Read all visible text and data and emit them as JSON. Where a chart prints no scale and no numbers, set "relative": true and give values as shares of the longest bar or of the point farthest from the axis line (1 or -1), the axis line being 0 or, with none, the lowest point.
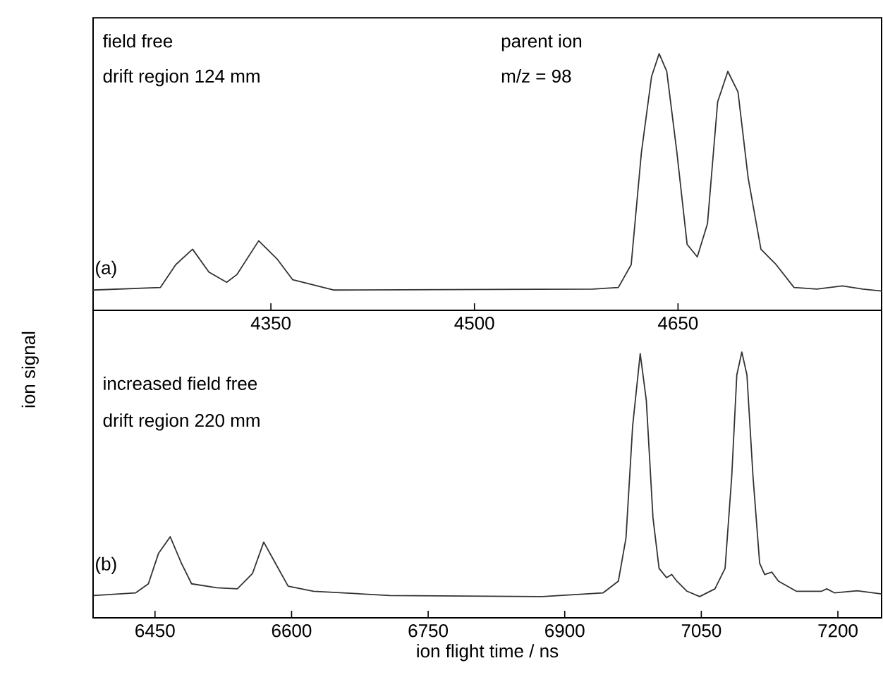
{
  "chart_data": [
    {
      "type": "line",
      "relative": true,
      "tick_labels": "x",
      "xlim": [
        4219,
        4800
      ],
      "xticks": [
        4350,
        4500,
        4650
      ],
      "annotations": [
        "field free",
        "drift region 124 mm",
        "parent ion",
        "m/z = 98",
        "(a)"
      ],
      "series": [
        {
          "color": "#333333",
          "x": [
            4219,
            4268.6,
            4279.9,
            4292.3,
            4304.3,
            4317.4,
            4324.9,
            4341,
            4354.9,
            4366.1,
            4396.1,
            4587.3,
            4606,
            4615.5,
            4623,
            4630.5,
            4636.1,
            4641.7,
            4649.2,
            4656.7,
            4664.2,
            4671.7,
            4679.2,
            4686.7,
            4694.2,
            4701.7,
            4711.1,
            4722.3,
            4735.5,
            4752.3,
            4771.1,
            4786.1,
            4800
          ],
          "values": [
            0.079,
            0.089,
            0.178,
            0.238,
            0.149,
            0.109,
            0.139,
            0.271,
            0.198,
            0.119,
            0.079,
            0.083,
            0.089,
            0.178,
            0.614,
            0.911,
            1,
            0.931,
            0.614,
            0.257,
            0.208,
            0.337,
            0.812,
            0.931,
            0.851,
            0.515,
            0.238,
            0.178,
            0.089,
            0.083,
            0.095,
            0.083,
            0.075
          ]
        }
      ]
    },
    {
      "type": "line",
      "relative": true,
      "tick_labels": "x",
      "ylabel": "ion signal",
      "xlabel": "ion flight time / ns",
      "xlim": [
        6382,
        7248
      ],
      "xticks": [
        6450,
        6600,
        6750,
        6900,
        7050,
        7200
      ],
      "annotations": [
        "increased field free",
        "drift region 220 mm",
        "(b)"
      ],
      "series": [
        {
          "color": "#333333",
          "x": [
            6382.5,
            6428.8,
            6442.7,
            6453.9,
            6466.7,
            6479,
            6490.2,
            6518.1,
            6540.4,
            6557.1,
            6569.4,
            6582.3,
            6596.2,
            6624.1,
            6707.8,
            6875.2,
            6942.2,
            6958.9,
            6967.3,
            6974.6,
            6982.9,
            6989.6,
            6996.9,
            7003.6,
            7011.9,
            7017.5,
            7023.1,
            7034.3,
            7048.2,
            7065,
            7076.1,
            7083.4,
            7089,
            7094.5,
            7100.1,
            7106.8,
            7114.1,
            7119.6,
            7127.5,
            7134.7,
            7154.3,
            7182.2,
            7187.8,
            7196.1,
            7221.2,
            7248
          ],
          "values": [
            0.084,
            0.094,
            0.128,
            0.243,
            0.305,
            0.205,
            0.128,
            0.113,
            0.109,
            0.167,
            0.285,
            0.205,
            0.119,
            0.1,
            0.084,
            0.08,
            0.094,
            0.138,
            0.301,
            0.722,
            0.994,
            0.818,
            0.377,
            0.186,
            0.151,
            0.163,
            0.138,
            0.1,
            0.08,
            0.109,
            0.186,
            0.531,
            0.914,
            1,
            0.914,
            0.531,
            0.205,
            0.163,
            0.172,
            0.138,
            0.1,
            0.1,
            0.109,
            0.094,
            0.102,
            0.09
          ]
        }
      ]
    }
  ]
}
